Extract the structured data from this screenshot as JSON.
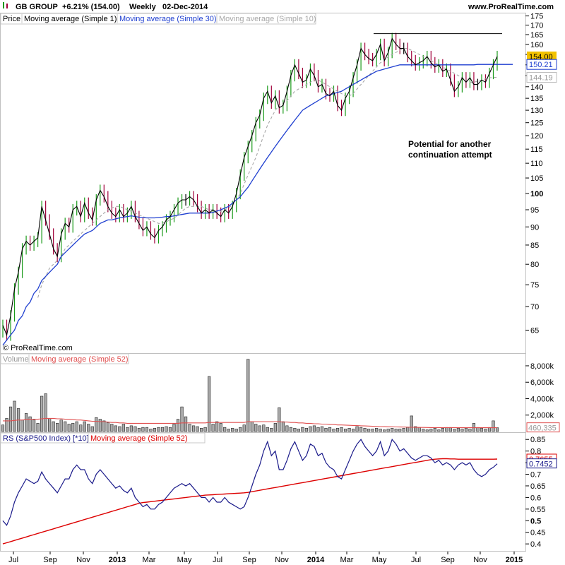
{
  "header": {
    "symbol": "GB GROUP",
    "change": "+6.21% (154.00)",
    "period": "Weekly",
    "date": "02-Dec-2014",
    "site": "www.ProRealTime.com",
    "copyright": "© ProRealTime.com"
  },
  "annotation": {
    "line1": "Potential for another",
    "line2": "continuation attempt",
    "resistance_level": 165.5
  },
  "colors": {
    "up": "#1a9a1a",
    "down": "#a0003a",
    "neutral": "#000000",
    "ma30": "#1f3fd0",
    "ma10": "#a8a8a8",
    "rs_line": "#1a1a8a",
    "rs_ma": "#dd0000",
    "vol_bar": "#aaaaaa",
    "vol_ma": "#e05050",
    "last_price_bg": "#f2c200"
  },
  "chart_data": [
    {
      "type": "line",
      "name": "price",
      "legend": [
        "Price",
        "Moving average (Simple 1)",
        "Moving average (Simple 30)",
        "Moving average (Simple 10)"
      ],
      "y_scale": "log",
      "ylim": [
        61,
        176
      ],
      "yticks": [
        65,
        70,
        75,
        80,
        85,
        90,
        95,
        100,
        105,
        110,
        115,
        120,
        125,
        130,
        135,
        140,
        145,
        150,
        155,
        160,
        165,
        170,
        175
      ],
      "x_labels": [
        "Jul",
        "Sep",
        "Nov",
        "2013",
        "Mar",
        "May",
        "Jul",
        "Sep",
        "Nov",
        "2014",
        "Mar",
        "May",
        "Jul",
        "Sep",
        "Nov",
        "2015"
      ],
      "weeks": 128,
      "close": [
        66,
        64,
        68,
        74,
        78,
        84,
        86,
        85,
        86,
        87,
        96,
        92,
        88,
        84,
        82,
        88,
        91,
        90,
        95,
        96,
        93,
        97,
        94,
        92,
        98,
        101,
        99,
        96,
        94,
        93,
        95,
        93,
        94,
        96,
        93,
        91,
        89,
        90,
        88,
        87,
        89,
        90,
        92,
        93,
        95,
        97,
        98,
        98,
        99,
        98,
        96,
        94,
        95,
        94,
        95,
        94,
        93,
        95,
        94,
        96,
        100,
        106,
        112,
        116,
        120,
        125,
        128,
        135,
        138,
        133,
        136,
        131,
        132,
        138,
        145,
        150,
        146,
        142,
        143,
        148,
        145,
        140,
        141,
        137,
        136,
        138,
        132,
        130,
        135,
        138,
        144,
        150,
        158,
        155,
        153,
        152,
        155,
        160,
        152,
        156,
        163,
        160,
        158,
        158,
        154,
        152,
        150,
        151,
        152,
        154,
        151,
        149,
        150,
        147,
        148,
        143,
        138,
        140,
        144,
        142,
        144,
        141,
        141,
        143,
        142,
        146,
        150,
        154
      ],
      "ma30": [
        62,
        63,
        64,
        65,
        67,
        68,
        70,
        71,
        73,
        74,
        76,
        77,
        78,
        79,
        80,
        82,
        83,
        84,
        85,
        86,
        87,
        88,
        88.5,
        89,
        90,
        91,
        91.5,
        92,
        92,
        92.3,
        92.6,
        92.8,
        93,
        93.2,
        93,
        92.8,
        92.7,
        92.6,
        92.6,
        92.6,
        92.7,
        92.8,
        93,
        93,
        93.2,
        93.4,
        93.6,
        93.8,
        94,
        94,
        94,
        94,
        94,
        94,
        94.2,
        94.6,
        95,
        95.5,
        96,
        97,
        98,
        99,
        100.5,
        102,
        104,
        106,
        108,
        110,
        112,
        114,
        116,
        118,
        120,
        122,
        124,
        126,
        128,
        130,
        131,
        132,
        133,
        134,
        135,
        136,
        136.5,
        137,
        137.5,
        138,
        139,
        140,
        141,
        142,
        143,
        144,
        145,
        146,
        147,
        147.5,
        148,
        148.5,
        149,
        149.5,
        150,
        150,
        150,
        150,
        150,
        150,
        150,
        150,
        150,
        150,
        150,
        150,
        150,
        150,
        150,
        150,
        150,
        150,
        150,
        150,
        150.2,
        150.2,
        150.2,
        150.2,
        150.2,
        150.2,
        150.2,
        150.2,
        150.2,
        150.21
      ],
      "ma10": [
        null,
        null,
        null,
        null,
        null,
        null,
        null,
        null,
        null,
        72,
        75,
        77,
        79,
        80,
        81,
        82,
        84,
        85,
        86,
        87,
        88,
        89,
        90,
        91,
        92,
        93,
        94,
        95,
        95.5,
        96,
        96,
        95.5,
        95,
        94.5,
        94,
        93.5,
        93,
        92.5,
        92,
        91.5,
        91,
        91,
        91.5,
        92,
        92.5,
        93.5,
        94.5,
        95.5,
        96,
        96,
        96,
        96,
        95.5,
        95,
        95,
        94.5,
        94.5,
        95,
        95.5,
        96.5,
        98,
        100,
        103,
        106,
        109,
        112,
        116,
        120,
        124,
        127,
        130,
        132,
        133,
        134,
        136,
        138,
        139,
        140,
        141,
        142,
        143,
        143,
        142,
        141,
        140,
        139,
        138,
        137,
        136,
        136,
        137,
        139,
        141,
        143,
        145,
        147,
        149,
        151,
        152,
        154,
        155,
        156,
        157,
        158,
        158,
        157,
        156,
        155,
        154,
        153,
        152,
        151,
        150,
        149,
        148,
        147,
        146,
        145,
        144,
        143,
        142,
        142,
        142.5,
        143,
        143.5,
        144,
        144.19,
        144.19
      ],
      "labels": {
        "last": "154.00",
        "ma30": "150.21",
        "ma10": "144.19"
      }
    },
    {
      "type": "bar",
      "name": "volume",
      "legend": [
        "Volume",
        "Moving average (Simple 52)"
      ],
      "ylim": [
        0,
        9200000
      ],
      "yticks": [
        2000000,
        4000000,
        6000000,
        8000000
      ],
      "ytick_labels": [
        "2,000k",
        "4,000k",
        "6,000k",
        "8,000k"
      ],
      "values": [
        800000,
        1600000,
        3000000,
        3700000,
        2800000,
        1400000,
        2200000,
        1800000,
        1400000,
        1000000,
        4300000,
        4600000,
        1600000,
        1200000,
        1000000,
        1400000,
        1200000,
        900000,
        1000000,
        1200000,
        800000,
        1200000,
        900000,
        600000,
        1700000,
        1500000,
        1300000,
        1100000,
        900000,
        700000,
        600000,
        900000,
        500000,
        700000,
        600000,
        400000,
        500000,
        500000,
        300000,
        400000,
        500000,
        500000,
        600000,
        500000,
        900000,
        1500000,
        3000000,
        1800000,
        900000,
        700000,
        600000,
        400000,
        500000,
        6700000,
        900000,
        1200000,
        1000000,
        500000,
        300000,
        400000,
        300000,
        500000,
        800000,
        8800000,
        1200000,
        900000,
        700000,
        800000,
        500000,
        400000,
        1000000,
        2900000,
        1200000,
        700000,
        500000,
        400000,
        300000,
        500000,
        400000,
        600000,
        700000,
        500000,
        600000,
        400000,
        500000,
        300000,
        400000,
        500000,
        300000,
        400000,
        300000,
        600000,
        500000,
        400000,
        300000,
        300000,
        400000,
        300000,
        200000,
        300000,
        400000,
        300000,
        300000,
        400000,
        500000,
        1900000,
        600000,
        500000,
        300000,
        200000,
        300000,
        400000,
        200000,
        400000,
        500000,
        500000,
        300000,
        400000,
        300000,
        400000,
        300000,
        1000000,
        500000,
        400000,
        300000,
        500000,
        1300000,
        460335
      ],
      "ma52": [
        1300000,
        1300000,
        1300000,
        1350000,
        1400000,
        1400000,
        1450000,
        1500000,
        1500000,
        1500000,
        1550000,
        1600000,
        1600000,
        1600000,
        1550000,
        1550000,
        1500000,
        1500000,
        1450000,
        1400000,
        1400000,
        1350000,
        1300000,
        1250000,
        1250000,
        1200000,
        1200000,
        1150000,
        1100000,
        1100000,
        1050000,
        1050000,
        1000000,
        1000000,
        1000000,
        1000000,
        1000000,
        1000000,
        1000000,
        1000000,
        1000000,
        1000000,
        1000000,
        1000000,
        1000000,
        1000000,
        1050000,
        1050000,
        1050000,
        1050000,
        1050000,
        1050000,
        1050000,
        1100000,
        1100000,
        1100000,
        1100000,
        1100000,
        1100000,
        1100000,
        1100000,
        1100000,
        1100000,
        1200000,
        1200000,
        1200000,
        1200000,
        1200000,
        1200000,
        1200000,
        1200000,
        1200000,
        1150000,
        1150000,
        1100000,
        1100000,
        1050000,
        1050000,
        1000000,
        1000000,
        950000,
        950000,
        900000,
        900000,
        850000,
        850000,
        800000,
        800000,
        780000,
        760000,
        740000,
        720000,
        700000,
        680000,
        660000,
        640000,
        620000,
        600000,
        590000,
        580000,
        570000,
        560000,
        550000,
        540000,
        530000,
        520000,
        510000,
        500000,
        495000,
        490000,
        485000,
        480000,
        478000,
        476000,
        474000,
        472000,
        470000,
        468000,
        466000,
        464000,
        463000,
        462000,
        461500,
        461000,
        460800,
        460600,
        460400,
        460335
      ],
      "labels": {
        "ma52": "460,335"
      }
    },
    {
      "type": "line",
      "name": "relative-strength",
      "legend": [
        "RS (S&P500 Index) [*10]",
        "Moving average (Simple 52)"
      ],
      "ylim": [
        0.37,
        0.875
      ],
      "yticks": [
        0.4,
        0.45,
        0.5,
        0.55,
        0.6,
        0.65,
        0.7,
        0.75,
        0.8,
        0.85
      ],
      "ytick_labels": [
        "0.4",
        "0.45",
        "0.5",
        "0.55",
        "0.6",
        "0.65",
        "0.7",
        "0.75",
        "0.8",
        "0.85"
      ],
      "rs": [
        0.5,
        0.48,
        0.52,
        0.58,
        0.62,
        0.65,
        0.68,
        0.67,
        0.66,
        0.67,
        0.71,
        0.68,
        0.66,
        0.64,
        0.62,
        0.65,
        0.68,
        0.68,
        0.72,
        0.74,
        0.72,
        0.72,
        0.68,
        0.66,
        0.7,
        0.72,
        0.7,
        0.68,
        0.66,
        0.64,
        0.65,
        0.63,
        0.62,
        0.64,
        0.6,
        0.58,
        0.56,
        0.57,
        0.55,
        0.55,
        0.57,
        0.58,
        0.6,
        0.62,
        0.64,
        0.65,
        0.66,
        0.65,
        0.66,
        0.64,
        0.62,
        0.6,
        0.6,
        0.58,
        0.6,
        0.58,
        0.58,
        0.6,
        0.58,
        0.57,
        0.56,
        0.55,
        0.56,
        0.6,
        0.65,
        0.7,
        0.74,
        0.8,
        0.84,
        0.78,
        0.8,
        0.72,
        0.72,
        0.76,
        0.81,
        0.84,
        0.8,
        0.76,
        0.78,
        0.83,
        0.82,
        0.78,
        0.79,
        0.75,
        0.73,
        0.72,
        0.69,
        0.68,
        0.72,
        0.76,
        0.8,
        0.83,
        0.85,
        0.82,
        0.8,
        0.78,
        0.8,
        0.84,
        0.78,
        0.8,
        0.85,
        0.83,
        0.8,
        0.81,
        0.79,
        0.77,
        0.76,
        0.77,
        0.78,
        0.78,
        0.77,
        0.75,
        0.76,
        0.74,
        0.75,
        0.74,
        0.72,
        0.74,
        0.75,
        0.74,
        0.75,
        0.72,
        0.7,
        0.69,
        0.7,
        0.72,
        0.73,
        0.7452
      ],
      "ma52": [
        0.4,
        0.405,
        0.41,
        0.415,
        0.42,
        0.425,
        0.43,
        0.435,
        0.44,
        0.445,
        0.45,
        0.455,
        0.46,
        0.465,
        0.47,
        0.475,
        0.48,
        0.485,
        0.49,
        0.495,
        0.5,
        0.505,
        0.51,
        0.515,
        0.52,
        0.525,
        0.53,
        0.535,
        0.54,
        0.545,
        0.55,
        0.555,
        0.56,
        0.565,
        0.57,
        0.575,
        0.578,
        0.58,
        0.582,
        0.584,
        0.586,
        0.588,
        0.59,
        0.592,
        0.594,
        0.596,
        0.598,
        0.6,
        0.602,
        0.604,
        0.606,
        0.608,
        0.61,
        0.611,
        0.612,
        0.613,
        0.614,
        0.615,
        0.616,
        0.617,
        0.618,
        0.619,
        0.62,
        0.622,
        0.625,
        0.628,
        0.631,
        0.634,
        0.637,
        0.64,
        0.643,
        0.646,
        0.649,
        0.652,
        0.655,
        0.658,
        0.661,
        0.664,
        0.667,
        0.67,
        0.673,
        0.676,
        0.679,
        0.682,
        0.685,
        0.688,
        0.691,
        0.694,
        0.697,
        0.7,
        0.703,
        0.706,
        0.709,
        0.712,
        0.715,
        0.718,
        0.721,
        0.724,
        0.727,
        0.73,
        0.733,
        0.736,
        0.739,
        0.742,
        0.745,
        0.748,
        0.751,
        0.754,
        0.757,
        0.76,
        0.763,
        0.765,
        0.766,
        0.767,
        0.767,
        0.766,
        0.766,
        0.765,
        0.765,
        0.765,
        0.765,
        0.765,
        0.765,
        0.765,
        0.765,
        0.765,
        0.765,
        0.7655
      ],
      "labels": {
        "rs_ma": "0.7655",
        "rs": "0.7452"
      }
    }
  ]
}
